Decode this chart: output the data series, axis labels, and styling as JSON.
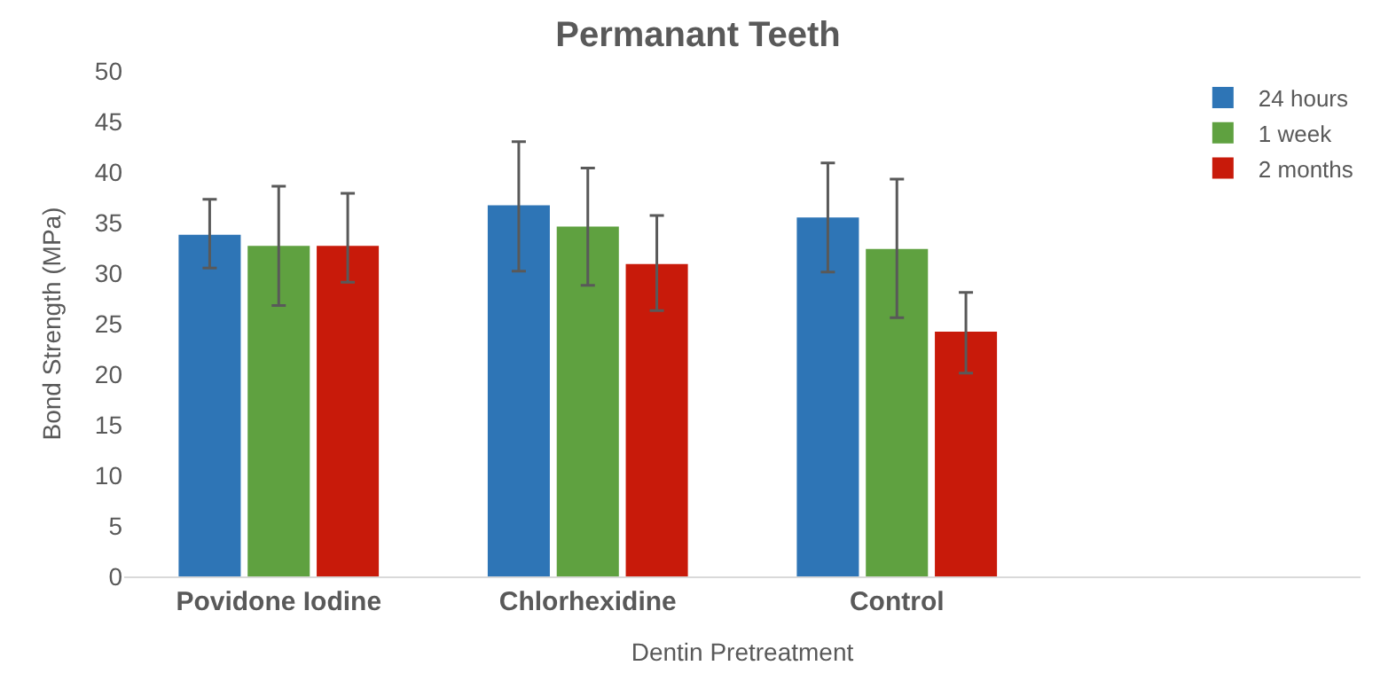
{
  "chart_data": {
    "type": "bar",
    "title": "Permanant Teeth",
    "xlabel": "Dentin Pretreatment",
    "ylabel": "Bond Strength (MPa)",
    "categories": [
      "Povidone Iodine",
      "Chlorhexidine",
      "Control",
      null
    ],
    "series": [
      {
        "name": "24 hours",
        "color": "#2e75b6",
        "values": [
          33.8,
          36.7,
          35.5,
          null
        ],
        "errors": [
          [
            30.5,
            37.3
          ],
          [
            30.2,
            43.0
          ],
          [
            30.1,
            40.9
          ],
          null
        ]
      },
      {
        "name": "1 week",
        "color": "#5fa140",
        "values": [
          32.7,
          34.6,
          32.4,
          null
        ],
        "errors": [
          [
            26.8,
            38.6
          ],
          [
            28.8,
            40.4
          ],
          [
            25.6,
            39.3
          ],
          null
        ]
      },
      {
        "name": "2 months",
        "color": "#c81a0a",
        "values": [
          32.7,
          30.9,
          24.2,
          null
        ],
        "errors": [
          [
            29.1,
            37.9
          ],
          [
            26.3,
            35.7
          ],
          [
            20.1,
            28.1
          ],
          null
        ]
      }
    ],
    "ylim": [
      0,
      50
    ],
    "yticks": [
      0,
      5,
      10,
      15,
      20,
      25,
      30,
      35,
      40,
      45,
      50
    ],
    "grid": false,
    "legend": "top right"
  }
}
